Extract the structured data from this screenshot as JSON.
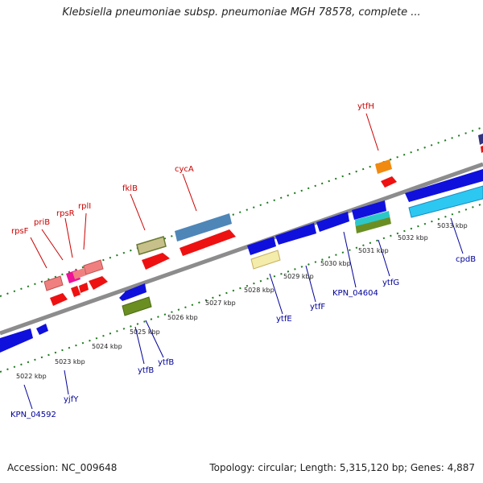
{
  "title": "Klebsiella pneumoniae subsp. pneumoniae MGH 78578, complete ...",
  "footer": {
    "accession_label": "Accession:",
    "accession": "NC_009648",
    "topology": "Topology: circular; Length: 5,315,120 bp; Genes: 4,887"
  },
  "colors": {
    "forward_label": "#cc0000",
    "reverse_label": "#000099",
    "backbone": "#8c8c8c",
    "ticks": "#1a7a1a"
  },
  "axis_labels": [
    "5022 kbp",
    "5023 kbp",
    "5024 kbp",
    "5025 kbp",
    "5026 kbp",
    "5027 kbp",
    "5028 kbp",
    "5029 kbp",
    "5030 kbp",
    "5031 kbp",
    "5032 kbp",
    "5033 kbp"
  ],
  "forward_gene_labels": [
    "rpsF",
    "priB",
    "rpsR",
    "rplI",
    "fklB",
    "cycA",
    "ytfH"
  ],
  "reverse_gene_labels": [
    "KPN_04592",
    "yjfY",
    "ytfB",
    "ytfB",
    "ytfE",
    "ytfF",
    "KPN_04604",
    "ytfG",
    "cpdB"
  ]
}
